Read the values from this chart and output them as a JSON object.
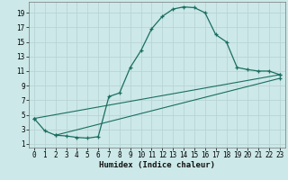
{
  "xlabel": "Humidex (Indice chaleur)",
  "bg_color": "#cce8e8",
  "grid_color": "#b8d4d4",
  "line_color": "#1a6e60",
  "xlim": [
    -0.5,
    23.5
  ],
  "ylim": [
    0.5,
    20.5
  ],
  "xticks": [
    0,
    1,
    2,
    3,
    4,
    5,
    6,
    7,
    8,
    9,
    10,
    11,
    12,
    13,
    14,
    15,
    16,
    17,
    18,
    19,
    20,
    21,
    22,
    23
  ],
  "yticks": [
    1,
    3,
    5,
    7,
    9,
    11,
    13,
    15,
    17,
    19
  ],
  "curve_x": [
    0,
    1,
    2,
    3,
    4,
    5,
    6,
    7,
    8,
    9,
    10,
    11,
    12,
    13,
    14,
    15,
    16,
    17,
    18,
    19,
    20,
    21,
    22,
    23
  ],
  "curve_y": [
    4.5,
    2.8,
    2.2,
    2.1,
    1.9,
    1.8,
    2.0,
    7.5,
    8.0,
    11.5,
    13.8,
    16.8,
    18.5,
    19.5,
    19.8,
    19.7,
    19.0,
    16.0,
    15.0,
    11.5,
    11.2,
    11.0,
    11.0,
    10.5
  ],
  "line2_x": [
    0,
    23
  ],
  "line2_y": [
    4.5,
    10.5
  ],
  "line3_x": [
    2,
    23
  ],
  "line3_y": [
    2.2,
    10.0
  ]
}
